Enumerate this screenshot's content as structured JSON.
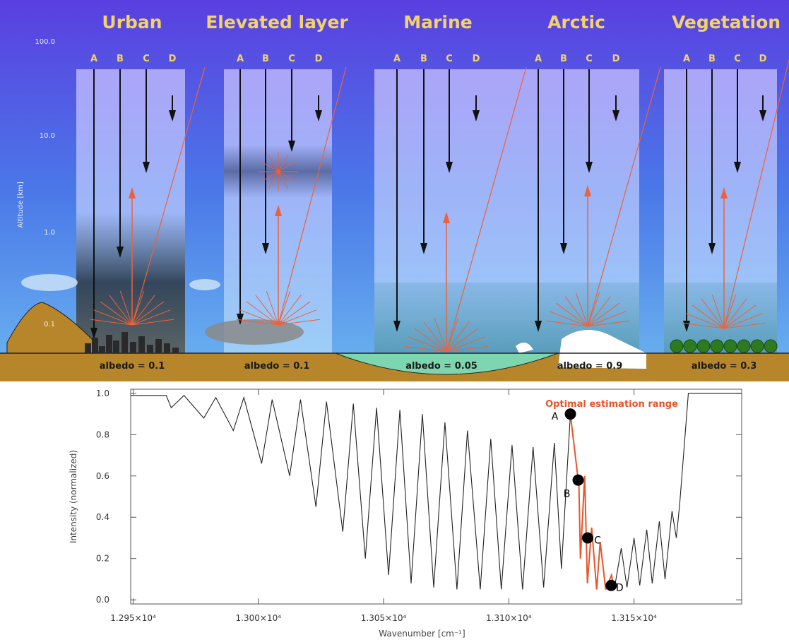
{
  "diagram": {
    "axis_label": "Altitude [km]",
    "ticks": [
      "100.0",
      "10.0",
      "1.0",
      "0.1"
    ],
    "beam_labels": [
      "A",
      "B",
      "C",
      "D"
    ],
    "panels": [
      {
        "title": "Urban",
        "albedo": "albedo = 0.1"
      },
      {
        "title": "Elevated layer",
        "albedo": "albedo = 0.1"
      },
      {
        "title": "Marine",
        "albedo": "albedo = 0.05"
      },
      {
        "title": "Arctic",
        "albedo": "albedo = 0.9"
      },
      {
        "title": "Vegetation",
        "albedo": "albedo = 0.3"
      }
    ]
  },
  "chart_data": {
    "type": "line",
    "annotation": "Optimal estimation range",
    "x_label": "Wavenumber [cm⁻¹]",
    "y_label": "Intensity (normalized)",
    "xlim": [
      12949,
      13193
    ],
    "ylim": [
      -0.02,
      1.02
    ],
    "xticks": [
      {
        "value": 12950,
        "label": "1.295×10⁴"
      },
      {
        "value": 13000,
        "label": "1.300×10⁴"
      },
      {
        "value": 13050,
        "label": "1.305×10⁴"
      },
      {
        "value": 13100,
        "label": "1.310×10⁴"
      },
      {
        "value": 13150,
        "label": "1.315×10⁴"
      }
    ],
    "yticks": [
      {
        "value": 0,
        "label": "0.0"
      },
      0.2,
      0.4,
      0.6,
      0.8,
      {
        "value": 1,
        "label": "1.0"
      }
    ],
    "series": [
      {
        "color": "#222222",
        "x": [
          12949,
          12963.2,
          12965.2,
          12970.3,
          12978.2,
          12983.0,
          12990.0,
          12994.2,
          13001.3,
          13005.5,
          13012.5,
          13016.8,
          13023.0,
          13027.2,
          13033.7,
          13037.9,
          13042.7,
          13047.2,
          13052.0,
          13056.5,
          13061.0,
          13065.5,
          13070.0,
          13074.5,
          13079.3,
          13083.5,
          13088.6,
          13092.8,
          13097.0,
          13101.3,
          13105.5,
          13109.7,
          13113.9,
          13118.2,
          13121.0,
          13124.6,
          13133.0,
          13142.1,
          13144.9,
          13147.2,
          13150.0,
          13152.3,
          13155.1,
          13157.3,
          13160.1,
          13162.4,
          13165.2,
          13166.9,
          13168.3,
          13171.7,
          13175.9,
          13192.8
        ],
        "values": [
          0.99,
          0.99,
          0.93,
          0.99,
          0.88,
          0.98,
          0.82,
          0.98,
          0.66,
          0.97,
          0.6,
          0.97,
          0.45,
          0.96,
          0.33,
          0.95,
          0.2,
          0.93,
          0.12,
          0.92,
          0.08,
          0.9,
          0.06,
          0.86,
          0.05,
          0.82,
          0.05,
          0.78,
          0.05,
          0.75,
          0.05,
          0.74,
          0.06,
          0.76,
          0.15,
          0.9,
          null,
          0.05,
          0.25,
          0.06,
          0.3,
          0.07,
          0.34,
          0.08,
          0.38,
          0.1,
          0.43,
          0.3,
          0.47,
          1.0,
          1.0,
          1.0
        ]
      },
      {
        "color": "#e8552a",
        "x": [
          13124.6,
          13128.0,
          13128.6,
          13130.3,
          13131.4,
          13133.1,
          13135.1,
          13136.5,
          13138.7,
          13141.0,
          13142.1
        ],
        "values": [
          0.9,
          0.55,
          0.2,
          0.6,
          0.08,
          0.35,
          0.05,
          0.28,
          0.05,
          0.12,
          0.05
        ]
      }
    ],
    "points": {
      "x": [
        13124.6,
        13127.7,
        13131.5,
        13140.9
      ],
      "values": [
        0.9,
        0.58,
        0.3,
        0.07
      ],
      "labels": [
        "A",
        "B",
        "C",
        "D"
      ]
    }
  }
}
